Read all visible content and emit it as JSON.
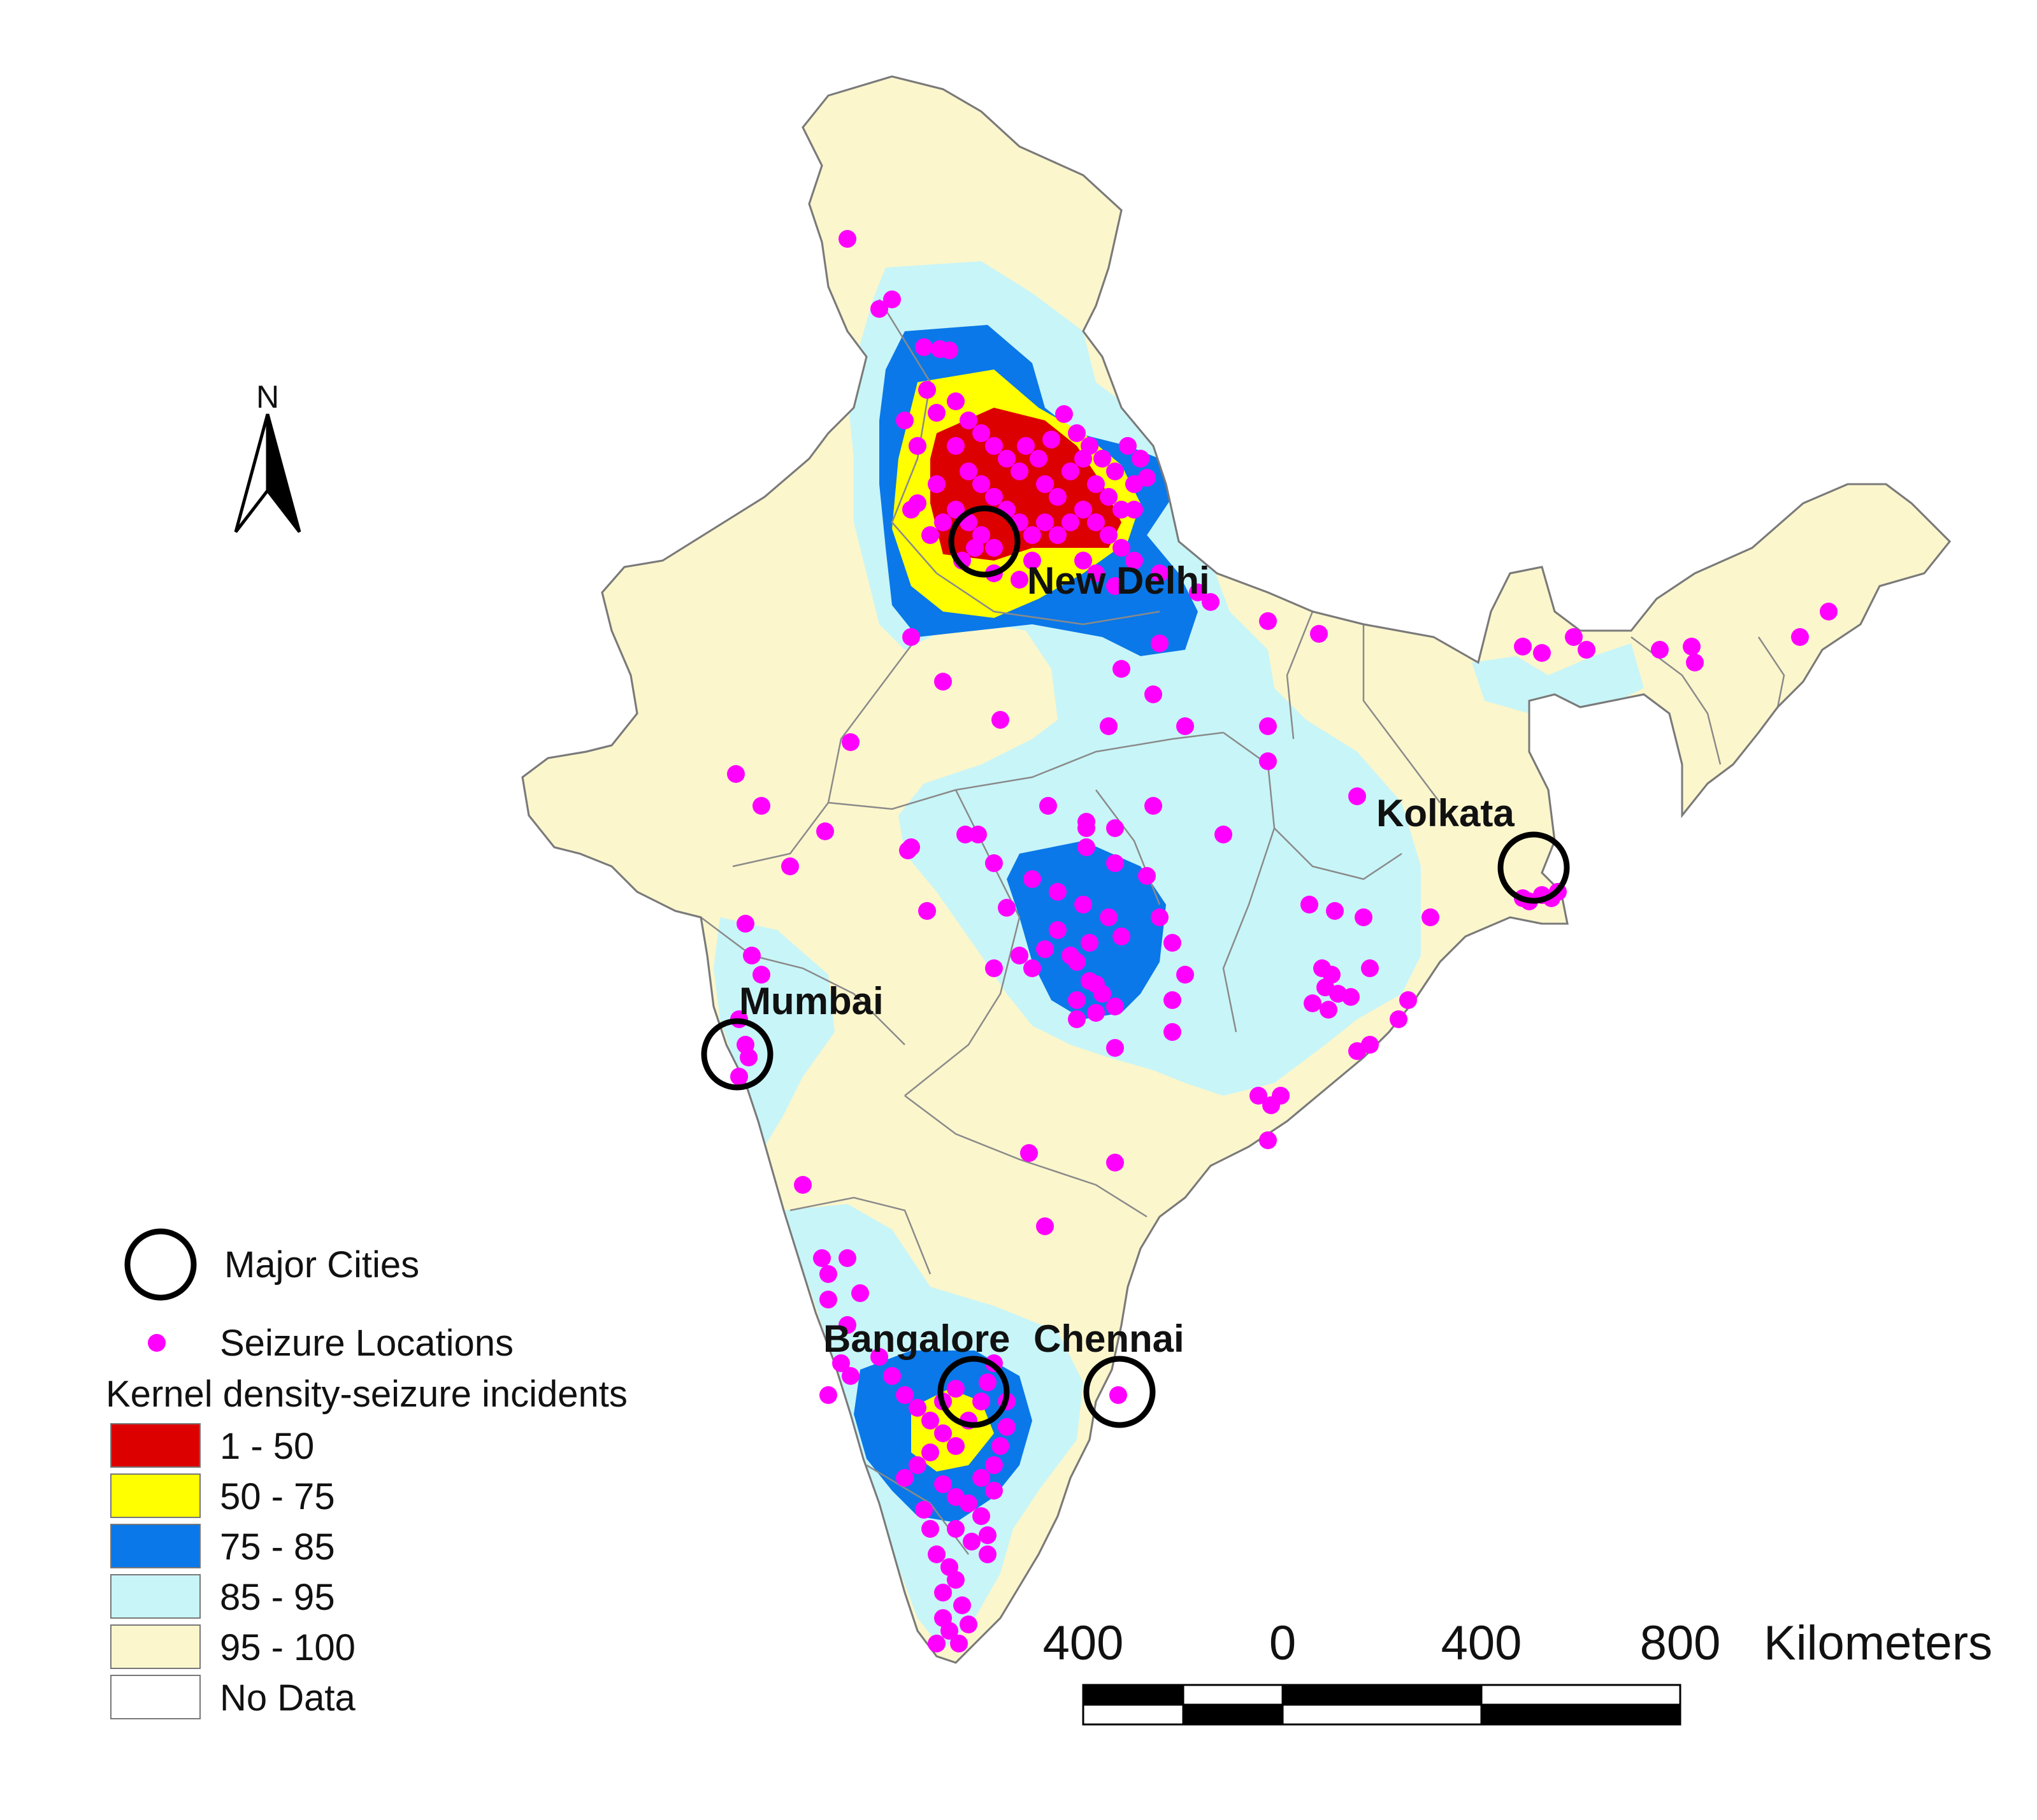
{
  "map": {
    "colors": {
      "background": "#ffffff",
      "land": "#fbf6cc",
      "border": "#8a8a8a",
      "seizure_dot": "#ff00ff",
      "city_ring": "#000000"
    },
    "cities": [
      {
        "name": "New Delhi"
      },
      {
        "name": "Kolkata"
      },
      {
        "name": "Mumbai"
      },
      {
        "name": "Bangalore"
      },
      {
        "name": "Chennai"
      }
    ],
    "north_arrow": {
      "label": "N",
      "icon": "north-arrow-icon"
    },
    "legend": {
      "major_cities_label": "Major Cities",
      "seizure_locations_label": "Seizure Locations",
      "density_title": "Kernel density-seizure incidents",
      "classes": [
        {
          "label": "1 - 50",
          "color": "#dd0000"
        },
        {
          "label": "50 - 75",
          "color": "#ffff00"
        },
        {
          "label": "75 - 85",
          "color": "#0a78e8"
        },
        {
          "label": "85 - 95",
          "color": "#c8f5f8"
        },
        {
          "label": "95 - 100",
          "color": "#fbf6cc"
        },
        {
          "label": "No Data",
          "color": "#ffffff"
        }
      ]
    },
    "scale_bar": {
      "ticks": [
        "400",
        "0",
        "400",
        "800"
      ],
      "unit": "Kilometers"
    }
  }
}
